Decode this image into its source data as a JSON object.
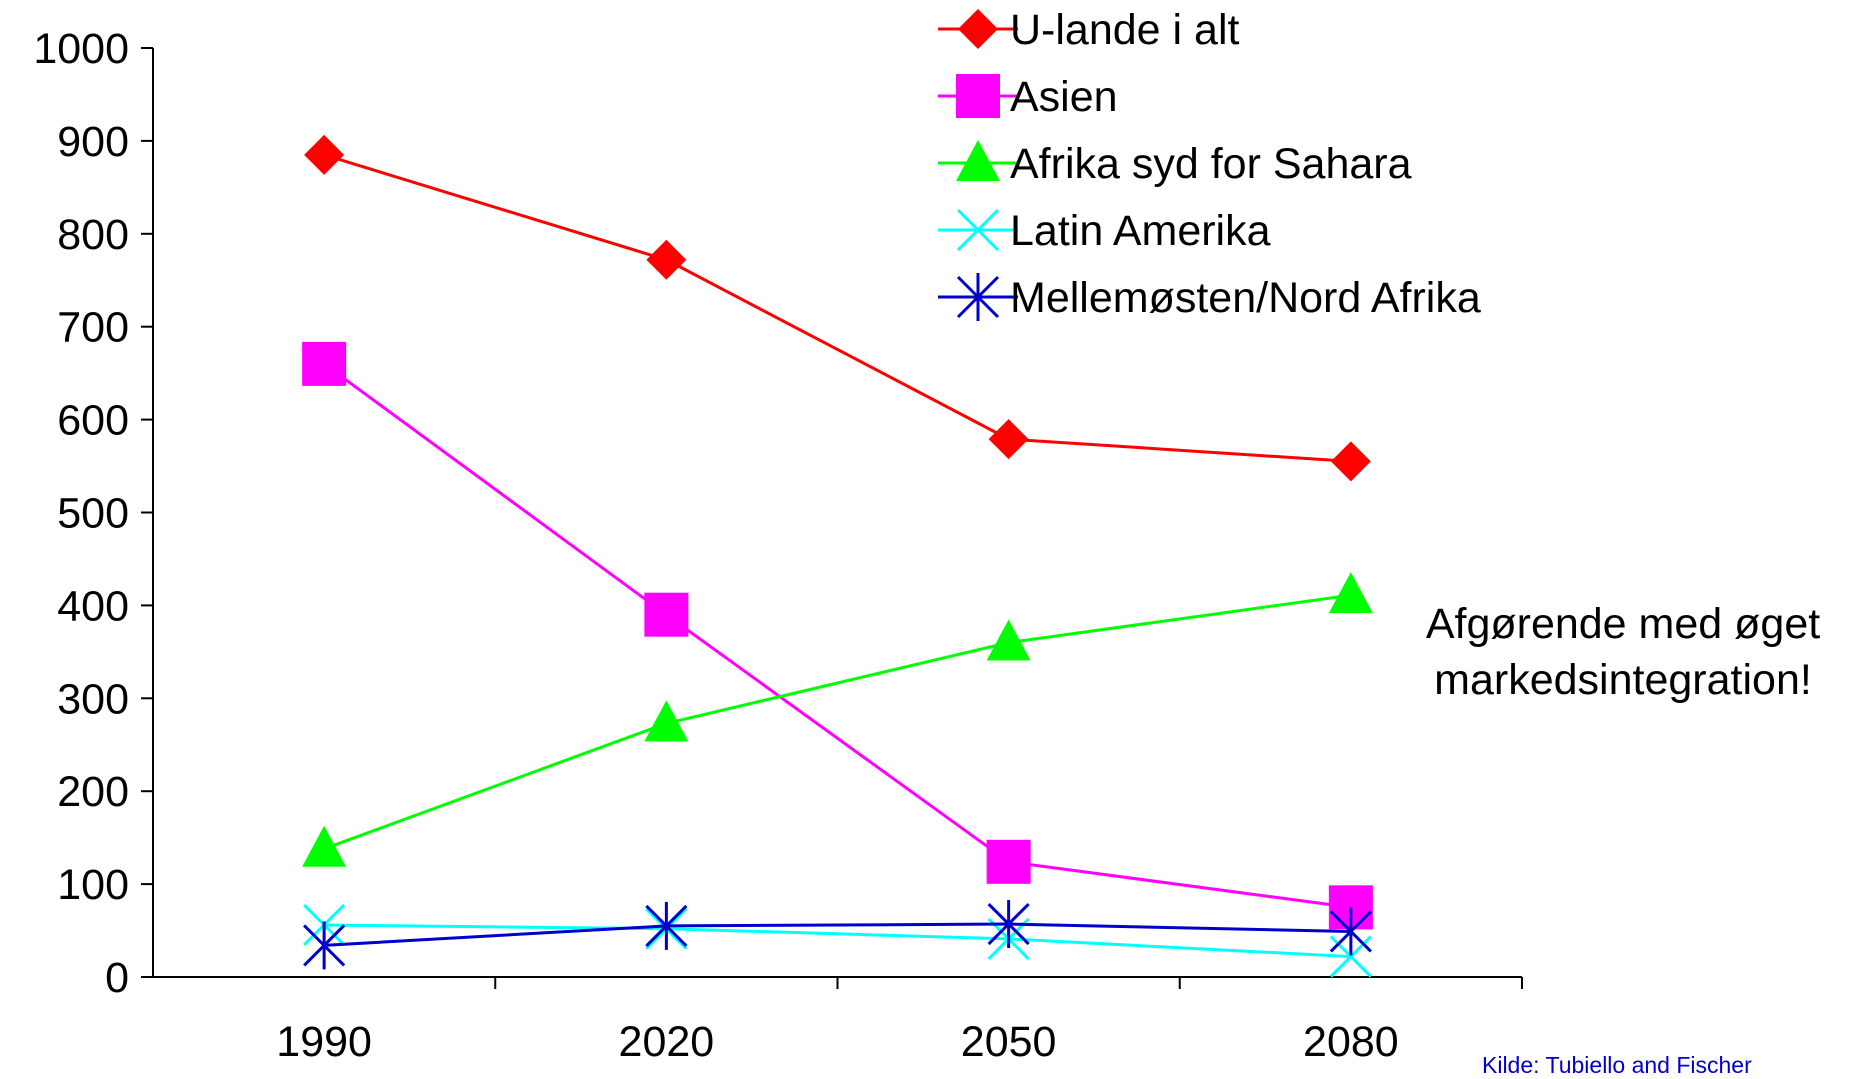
{
  "chart_data": {
    "type": "line",
    "title": "",
    "xlabel": "",
    "ylabel": "",
    "categories": [
      "1990",
      "2020",
      "2050",
      "2080"
    ],
    "ylim": [
      0,
      1000
    ],
    "yticks": [
      "0",
      "100",
      "200",
      "300",
      "400",
      "500",
      "600",
      "700",
      "800",
      "900",
      "1000"
    ],
    "grid": false,
    "legend_position": "top-right",
    "series": [
      {
        "name": "U-lande i alt",
        "color": "#ff0000",
        "marker": "diamond",
        "values": [
          885,
          772,
          579,
          555
        ]
      },
      {
        "name": "Asien",
        "color": "#ff00ff",
        "marker": "square",
        "values": [
          660,
          390,
          124,
          75
        ]
      },
      {
        "name": "Afrika syd for Sahara",
        "color": "#00ff00",
        "marker": "triangle",
        "values": [
          138,
          273,
          360,
          411
        ]
      },
      {
        "name": "Latin Amerika",
        "color": "#00ffff",
        "marker": "x",
        "values": [
          56,
          52,
          41,
          22
        ]
      },
      {
        "name": "Mellemøsten/Nord Afrika",
        "color": "#0000cc",
        "marker": "asterisk",
        "values": [
          34,
          55,
          57,
          49
        ]
      }
    ],
    "annotation": [
      "Afgørende med øget",
      "markedsintegration!"
    ],
    "source": "Kilde: Tubiello and Fischer"
  }
}
